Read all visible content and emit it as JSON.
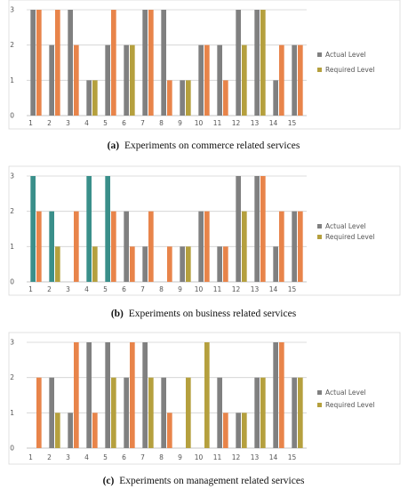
{
  "chart_data": [
    {
      "type": "bar",
      "caption_label": "(a)",
      "caption_text": "Experiments on commerce related services",
      "categories": [
        "1",
        "2",
        "3",
        "4",
        "5",
        "6",
        "7",
        "8",
        "9",
        "10",
        "11",
        "12",
        "13",
        "14",
        "15"
      ],
      "y_ticks": [
        "0",
        "1",
        "2",
        "3"
      ],
      "ylim": [
        0,
        3
      ],
      "grid": true,
      "legend_position": "right",
      "series": [
        {
          "name": "Actual Level",
          "values": [
            3,
            2,
            3,
            1,
            2,
            2,
            3,
            3,
            1,
            2,
            2,
            3,
            3,
            1,
            2
          ]
        },
        {
          "name": "Required Level",
          "values": [
            3,
            3,
            2,
            1,
            3,
            2,
            3,
            1,
            1,
            2,
            1,
            2,
            3,
            2,
            2
          ]
        }
      ],
      "colors": {
        "actual": [
          "#808080",
          "#808080",
          "#808080",
          "#808080",
          "#808080",
          "#808080",
          "#808080",
          "#808080",
          "#808080",
          "#808080",
          "#808080",
          "#808080",
          "#808080",
          "#808080",
          "#808080"
        ],
        "required": [
          "#e8844a",
          "#e8844a",
          "#e8844a",
          "#b5a03e",
          "#e8844a",
          "#b5a03e",
          "#e8844a",
          "#e8844a",
          "#b5a03e",
          "#e8844a",
          "#e8844a",
          "#b5a03e",
          "#b5a03e",
          "#e8844a",
          "#e8844a"
        ],
        "legend_actual": "#808080",
        "legend_required": "#b5a03e"
      }
    },
    {
      "type": "bar",
      "caption_label": "(b)",
      "caption_text": "Experiments on business related services",
      "categories": [
        "1",
        "2",
        "3",
        "4",
        "5",
        "6",
        "7",
        "8",
        "9",
        "10",
        "11",
        "12",
        "13",
        "14",
        "15"
      ],
      "y_ticks": [
        "0",
        "1",
        "2",
        "3"
      ],
      "ylim": [
        0,
        3
      ],
      "grid": true,
      "legend_position": "right",
      "series": [
        {
          "name": "Actual Level",
          "values": [
            3,
            2,
            0,
            3,
            3,
            2,
            1,
            0,
            1,
            2,
            1,
            3,
            3,
            1,
            2
          ]
        },
        {
          "name": "Required Level",
          "values": [
            2,
            1,
            2,
            1,
            2,
            1,
            2,
            1,
            1,
            2,
            1,
            2,
            3,
            2,
            2
          ]
        }
      ],
      "colors": {
        "actual": [
          "#3a8f8a",
          "#3a8f8a",
          "#3a8f8a",
          "#3a8f8a",
          "#3a8f8a",
          "#808080",
          "#808080",
          "#808080",
          "#808080",
          "#808080",
          "#808080",
          "#808080",
          "#808080",
          "#808080",
          "#808080"
        ],
        "required": [
          "#e8844a",
          "#b5a03e",
          "#e8844a",
          "#b5a03e",
          "#e8844a",
          "#e8844a",
          "#e8844a",
          "#e8844a",
          "#b5a03e",
          "#e8844a",
          "#e8844a",
          "#b5a03e",
          "#e8844a",
          "#e8844a",
          "#e8844a"
        ],
        "legend_actual": "#808080",
        "legend_required": "#b5a03e"
      }
    },
    {
      "type": "bar",
      "caption_label": "(c)",
      "caption_text": "Experiments on management related services",
      "categories": [
        "1",
        "2",
        "3",
        "4",
        "5",
        "6",
        "7",
        "8",
        "9",
        "10",
        "11",
        "12",
        "13",
        "14",
        "15"
      ],
      "y_ticks": [
        "0",
        "1",
        "2",
        "3"
      ],
      "ylim": [
        0,
        3
      ],
      "grid": true,
      "legend_position": "right",
      "series": [
        {
          "name": "Actual Level",
          "values": [
            0,
            2,
            1,
            3,
            3,
            2,
            3,
            2,
            0,
            0,
            2,
            1,
            2,
            3,
            2
          ]
        },
        {
          "name": "Required Level",
          "values": [
            2,
            1,
            3,
            1,
            2,
            3,
            2,
            1,
            2,
            3,
            1,
            1,
            2,
            3,
            2
          ]
        }
      ],
      "colors": {
        "actual": [
          "#808080",
          "#808080",
          "#808080",
          "#808080",
          "#808080",
          "#808080",
          "#808080",
          "#808080",
          "#808080",
          "#808080",
          "#808080",
          "#808080",
          "#808080",
          "#808080",
          "#808080"
        ],
        "required": [
          "#e8844a",
          "#b5a03e",
          "#e8844a",
          "#e8844a",
          "#b5a03e",
          "#e8844a",
          "#b5a03e",
          "#e8844a",
          "#b5a03e",
          "#b5a03e",
          "#e8844a",
          "#b5a03e",
          "#b5a03e",
          "#e8844a",
          "#b5a03e"
        ],
        "legend_actual": "#808080",
        "legend_required": "#b5a03e"
      }
    }
  ]
}
